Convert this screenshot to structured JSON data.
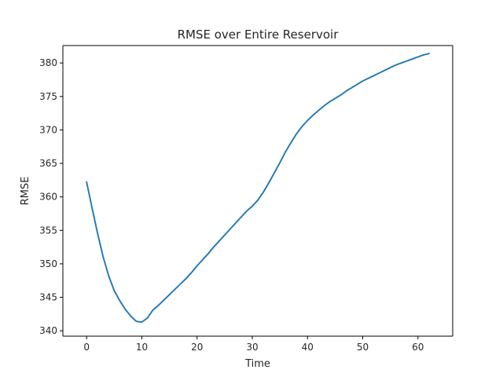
{
  "chart_data": {
    "type": "line",
    "title": "RMSE over Entire Reservoir",
    "xlabel": "Time",
    "ylabel": "RMSE",
    "xlim": [
      -4.3,
      66.3
    ],
    "ylim": [
      339.2,
      382.6
    ],
    "xticks": [
      0,
      10,
      20,
      30,
      40,
      50,
      60
    ],
    "yticks": [
      340,
      345,
      350,
      355,
      360,
      365,
      370,
      375,
      380
    ],
    "grid": false,
    "legend": "none",
    "series": [
      {
        "name": "RMSE",
        "color": "#1f77b4",
        "x": [
          0,
          1,
          2,
          3,
          4,
          5,
          6,
          7,
          8,
          9,
          10,
          11,
          12,
          13,
          14,
          15,
          16,
          17,
          18,
          19,
          20,
          21,
          22,
          23,
          24,
          25,
          26,
          27,
          28,
          29,
          30,
          31,
          32,
          33,
          34,
          35,
          36,
          37,
          38,
          39,
          40,
          41,
          42,
          43,
          44,
          45,
          46,
          47,
          48,
          49,
          50,
          51,
          52,
          53,
          54,
          55,
          56,
          57,
          58,
          59,
          60,
          61,
          62
        ],
        "values": [
          362.2,
          358.3,
          354.5,
          351.0,
          348.2,
          346.0,
          344.5,
          343.2,
          342.2,
          341.4,
          341.3,
          341.9,
          343.1,
          343.8,
          344.6,
          345.4,
          346.2,
          347.0,
          347.8,
          348.7,
          349.7,
          350.6,
          351.5,
          352.5,
          353.4,
          354.3,
          355.2,
          356.1,
          357.0,
          357.9,
          358.6,
          359.5,
          360.7,
          362.1,
          363.6,
          365.1,
          366.7,
          368.1,
          369.4,
          370.5,
          371.4,
          372.2,
          372.9,
          373.6,
          374.2,
          374.7,
          375.2,
          375.8,
          376.3,
          376.8,
          377.3,
          377.7,
          378.1,
          378.5,
          378.9,
          379.3,
          379.7,
          380.0,
          380.3,
          380.6,
          380.9,
          381.2,
          381.4
        ]
      }
    ]
  }
}
